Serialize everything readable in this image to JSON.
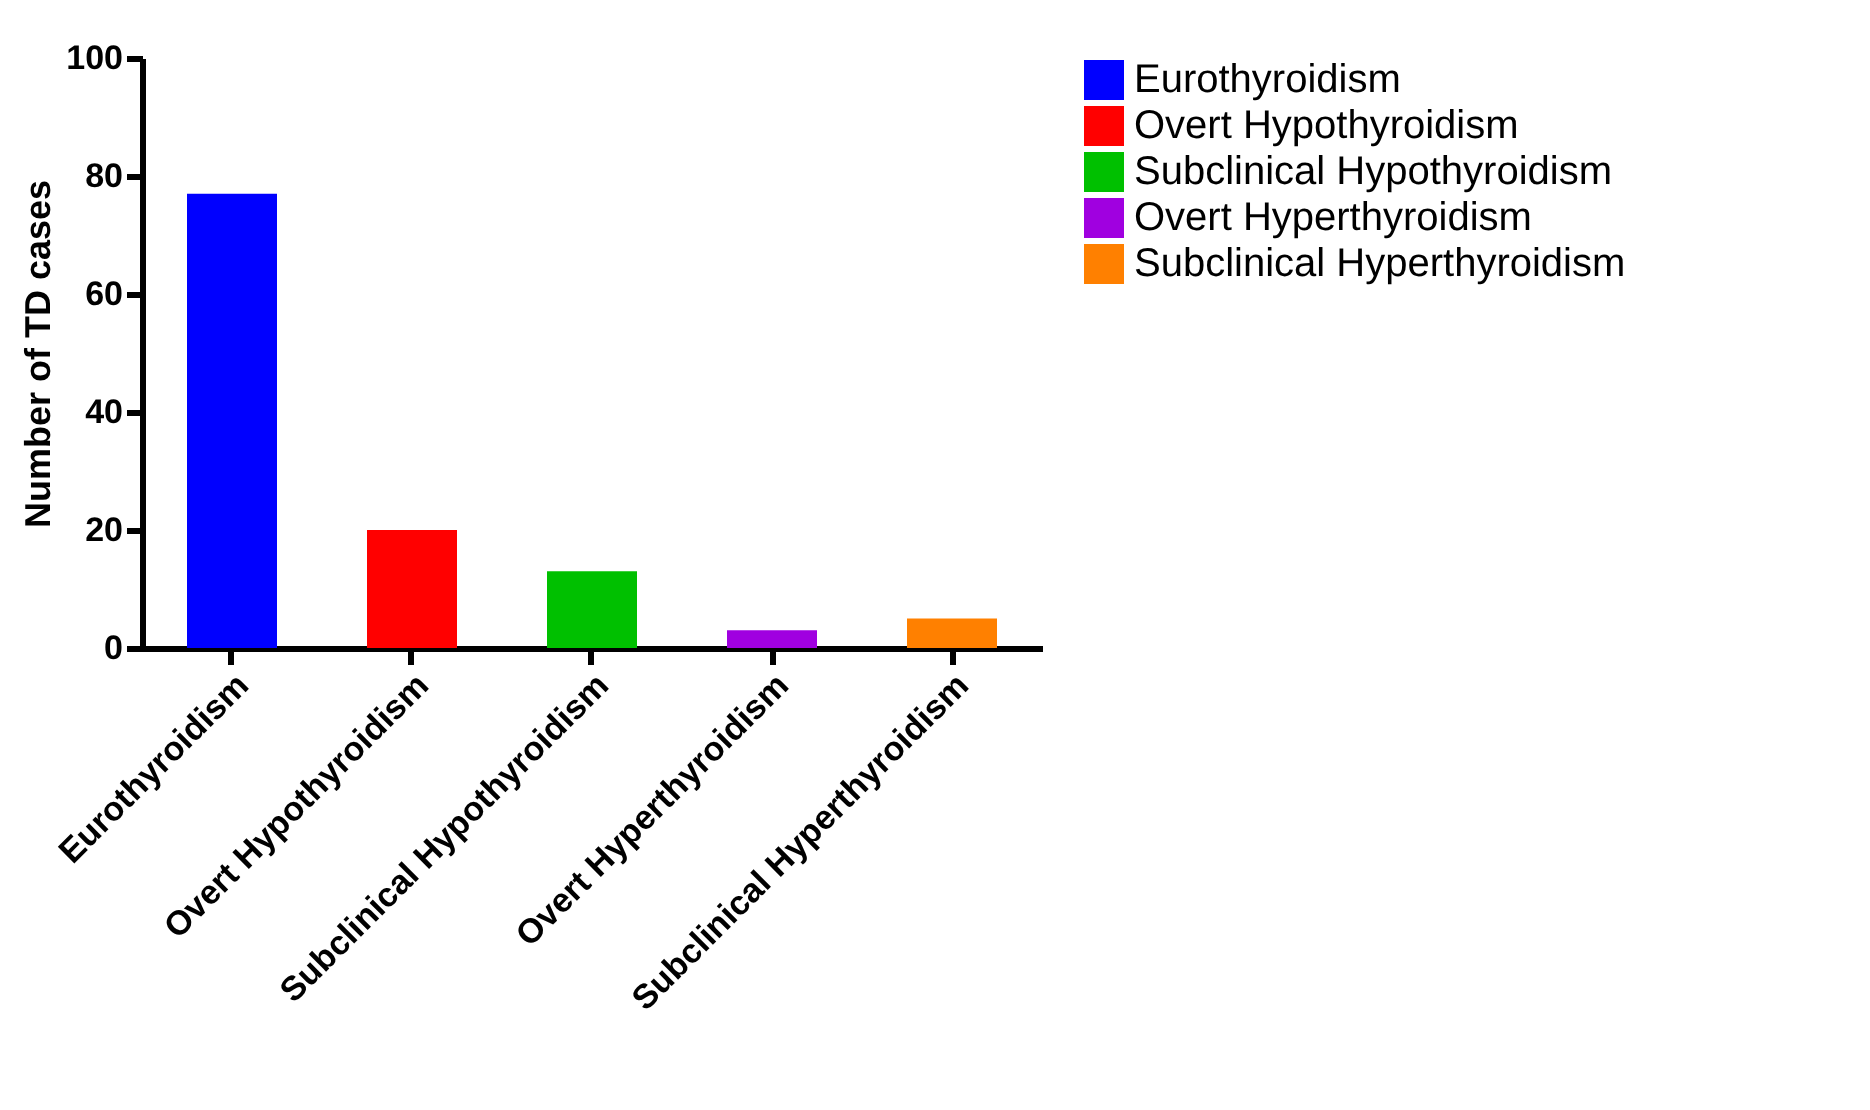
{
  "chart_data": {
    "type": "bar",
    "ylabel": "Number of TD cases",
    "categories": [
      "Eurothyroidism",
      "Overt Hypothyroidism",
      "Subclinical Hypothyroidism",
      "Overt Hyperthyroidism",
      "Subclinical Hyperthyroidism"
    ],
    "series": [
      {
        "name": "Eurothyroidism",
        "color": "#0000ff",
        "values": [
          77,
          null,
          null,
          null,
          null
        ]
      },
      {
        "name": "Overt Hypothyroidism",
        "color": "#ff0000",
        "values": [
          null,
          20,
          null,
          null,
          null
        ]
      },
      {
        "name": "Subclinical Hypothyroidism",
        "color": "#00c000",
        "values": [
          null,
          null,
          13,
          null,
          null
        ]
      },
      {
        "name": "Overt Hyperthyroidism",
        "color": "#a000e0",
        "values": [
          null,
          null,
          null,
          3,
          null
        ]
      },
      {
        "name": "Subclinical Hyperthyroidism",
        "color": "#ff8000",
        "values": [
          null,
          null,
          null,
          null,
          5
        ]
      }
    ],
    "ylim": [
      0,
      100
    ],
    "yticks": [
      0,
      20,
      40,
      60,
      80,
      100
    ],
    "grid": false,
    "legend": "right"
  }
}
